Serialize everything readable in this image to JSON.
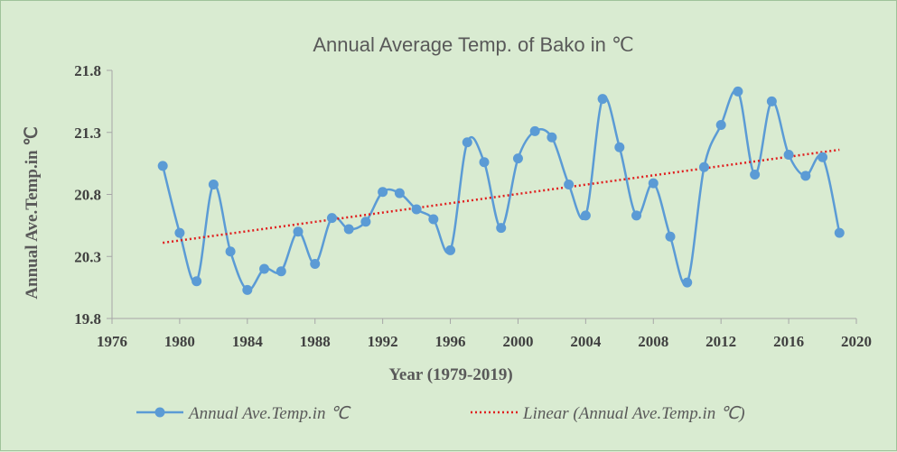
{
  "chart_data": {
    "type": "line",
    "title": "Annual Average Temp. of Bako in ℃",
    "xlabel": "Year (1979-2019)",
    "ylabel": "Annual Ave.Temp.in ℃",
    "xlim": [
      1976,
      2020
    ],
    "ylim": [
      19.8,
      21.8
    ],
    "xticks": [
      1976,
      1980,
      1984,
      1988,
      1992,
      1996,
      2000,
      2004,
      2008,
      2012,
      2016,
      2020
    ],
    "yticks": [
      19.8,
      20.3,
      20.8,
      21.3,
      21.8
    ],
    "grid": false,
    "legend_position": "bottom",
    "series": [
      {
        "name": "Annual Ave.Temp.in ℃",
        "color": "#5b9bd5",
        "style": "smooth-line-with-markers",
        "x": [
          1979,
          1980,
          1981,
          1982,
          1983,
          1984,
          1985,
          1986,
          1987,
          1988,
          1989,
          1990,
          1991,
          1992,
          1993,
          1994,
          1995,
          1996,
          1997,
          1998,
          1999,
          2000,
          2001,
          2002,
          2003,
          2004,
          2005,
          2006,
          2007,
          2008,
          2009,
          2010,
          2011,
          2012,
          2013,
          2014,
          2015,
          2016,
          2017,
          2018,
          2019
        ],
        "values": [
          21.03,
          20.49,
          20.1,
          20.88,
          20.34,
          20.03,
          20.2,
          20.18,
          20.5,
          20.24,
          20.61,
          20.52,
          20.58,
          20.82,
          20.81,
          20.68,
          20.6,
          20.35,
          21.22,
          21.06,
          20.53,
          21.09,
          21.31,
          21.26,
          20.88,
          20.63,
          21.57,
          21.18,
          20.63,
          20.89,
          20.46,
          20.09,
          21.02,
          21.36,
          21.63,
          20.96,
          21.55,
          21.12,
          20.95,
          21.1,
          20.49
        ]
      },
      {
        "name": "Linear (Annual Ave.Temp.in ℃)",
        "color": "#e02020",
        "style": "dotted-trendline",
        "x": [
          1979,
          2019
        ],
        "values": [
          20.41,
          21.16
        ]
      }
    ]
  }
}
